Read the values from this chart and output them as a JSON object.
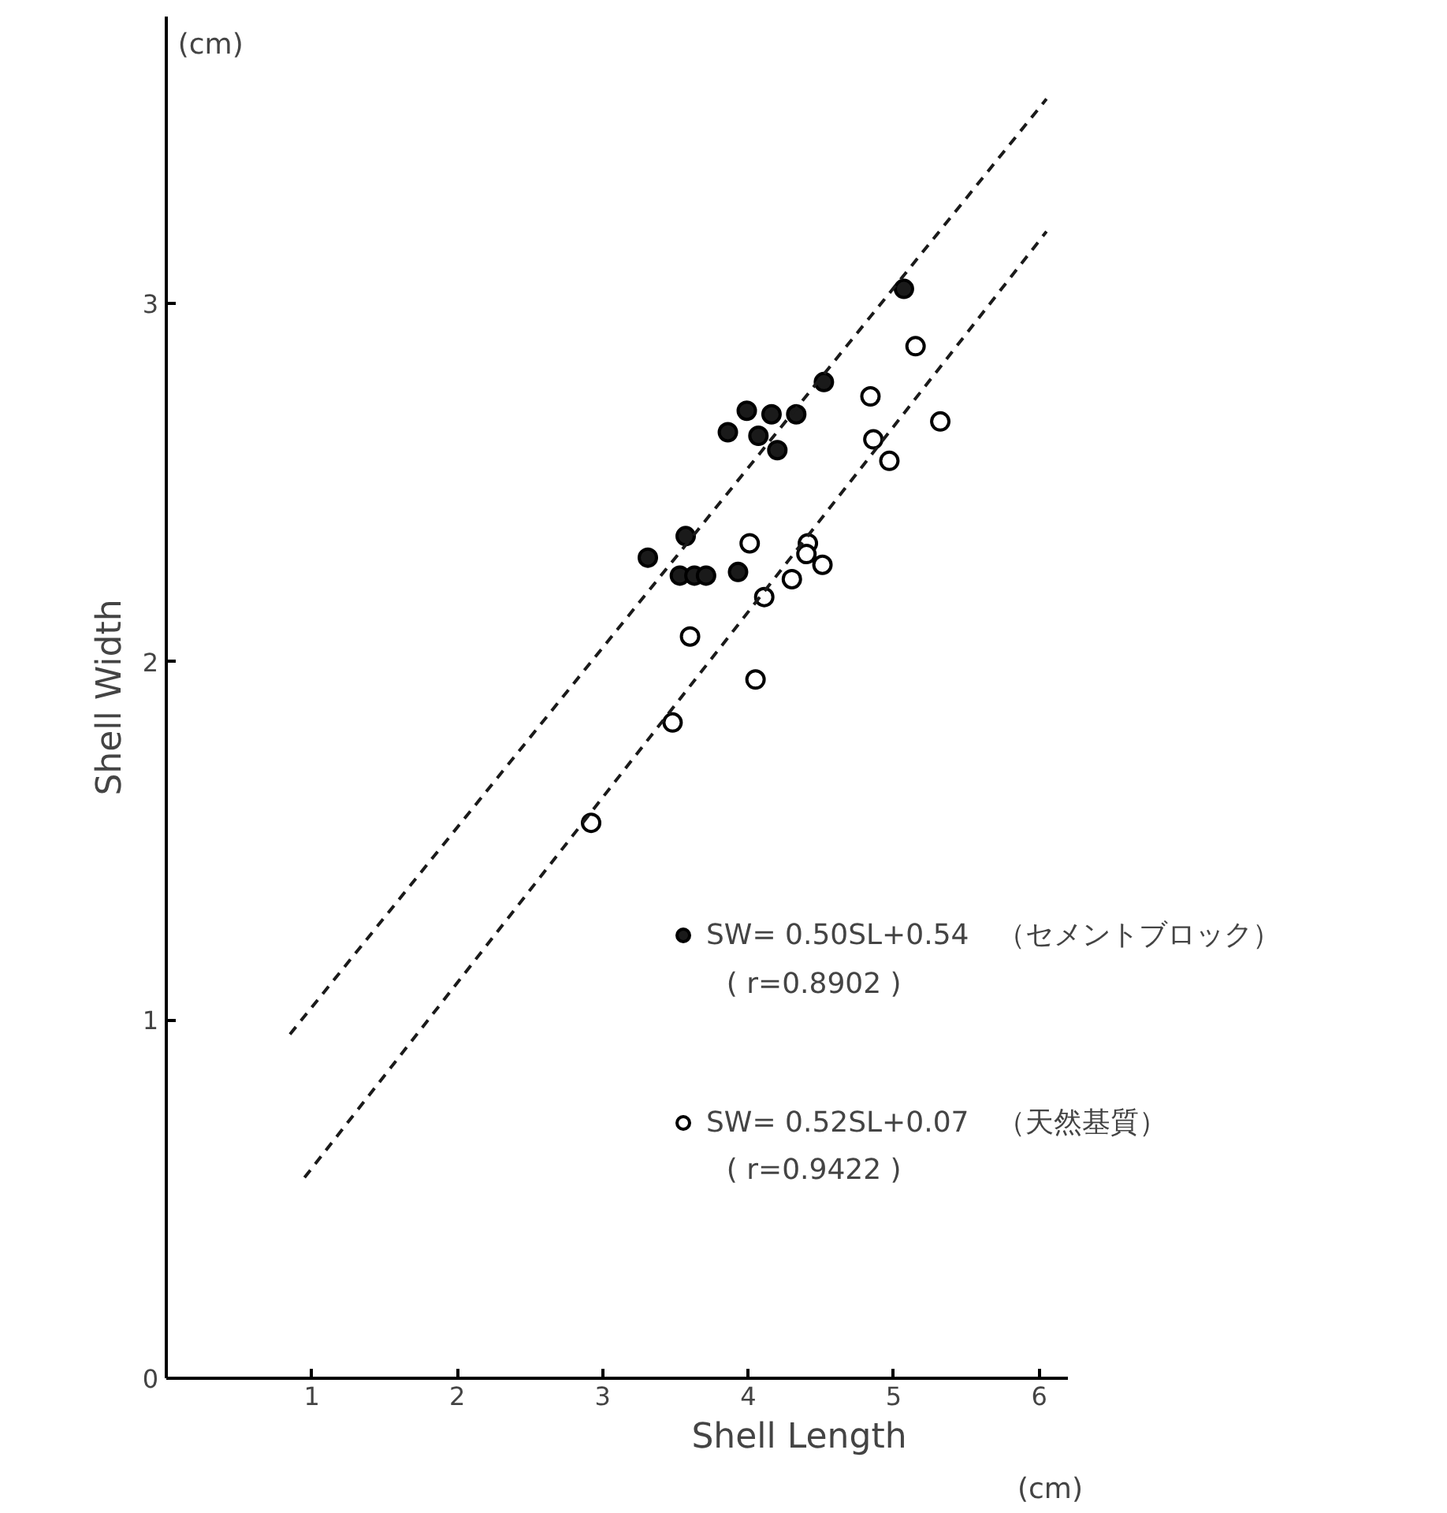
{
  "chart_data": {
    "type": "scatter",
    "xlabel": "Shell Length",
    "ylabel": "Shell Width",
    "xlim": [
      0,
      6.2
    ],
    "ylim": [
      0,
      3.8
    ],
    "xticks": [
      1,
      2,
      3,
      4,
      5,
      6
    ],
    "yticks": [
      0,
      1,
      2,
      3
    ],
    "grid": false,
    "marker": "circle",
    "legend": "bottom right",
    "series": [
      {
        "name": "SW= 0.50SL+0.54　（セメントブロック）",
        "color": "#1a1a1a",
        "x": [
          5.07,
          4.52,
          3.99,
          4.16,
          4.33,
          3.86,
          4.07,
          4.2,
          3.57,
          3.31,
          3.53,
          3.63,
          3.71,
          3.93
        ],
        "values": [
          3.04,
          2.78,
          2.7,
          2.69,
          2.69,
          2.64,
          2.63,
          2.59,
          2.35,
          2.29,
          2.24,
          2.24,
          2.24,
          2.25
        ]
      },
      {
        "name": "SW= 0.52SL+0.07　（天然基質）",
        "color": "#ffffff",
        "x": [
          5.15,
          4.84,
          5.32,
          4.86,
          4.97,
          4.01,
          4.41,
          4.4,
          4.51,
          4.3,
          4.11,
          3.6,
          4.05,
          3.48,
          2.92
        ],
        "values": [
          2.88,
          2.74,
          2.67,
          2.62,
          2.56,
          2.33,
          2.33,
          2.3,
          2.27,
          2.23,
          2.18,
          2.07,
          1.95,
          1.83,
          1.55
        ]
      },
      {
        "type": "line",
        "marker": "none",
        "line_style": "dashed",
        "color": "#1a1a1a",
        "x": [
          0.85,
          6.05
        ],
        "values": [
          0.96,
          3.57
        ]
      },
      {
        "type": "line",
        "marker": "none",
        "line_style": "dashed",
        "color": "#1a1a1a",
        "x": [
          0.95,
          6.05
        ],
        "values": [
          0.56,
          3.2
        ]
      }
    ],
    "annotations": [
      "(cm)",
      "(cm)",
      "( r=0.8902 )",
      "( r=0.9422 )"
    ]
  }
}
